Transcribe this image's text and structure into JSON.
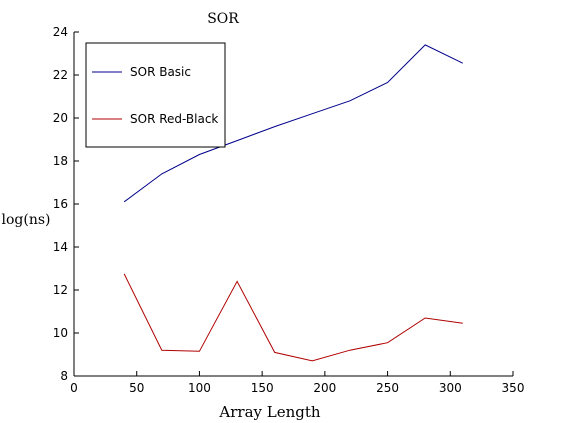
{
  "chart_data": {
    "type": "line",
    "title": "SOR",
    "xlabel": "Array  Length",
    "ylabel": "log(ns)",
    "xlim": [
      0,
      350
    ],
    "ylim": [
      8,
      24
    ],
    "xticks": [
      "0",
      "50",
      "100",
      "150",
      "200",
      "250",
      "300",
      "350"
    ],
    "yticks": [
      "8",
      "10",
      "12",
      "14",
      "16",
      "18",
      "20",
      "22",
      "24"
    ],
    "grid": false,
    "legend_position": "top-left",
    "series": [
      {
        "name": "SOR Basic",
        "color": "#00008b",
        "x": [
          40,
          70,
          100,
          130,
          160,
          190,
          220,
          250,
          280,
          310
        ],
        "y": [
          16.1,
          17.4,
          18.3,
          18.95,
          19.6,
          20.2,
          20.8,
          21.65,
          23.4,
          22.55
        ]
      },
      {
        "name": "SOR Red-Black",
        "color": "#b00000",
        "x": [
          40,
          70,
          100,
          130,
          160,
          190,
          220,
          250,
          280,
          310
        ],
        "y": [
          12.75,
          9.2,
          9.15,
          12.4,
          9.1,
          8.7,
          9.2,
          9.55,
          10.7,
          10.45
        ]
      }
    ]
  }
}
